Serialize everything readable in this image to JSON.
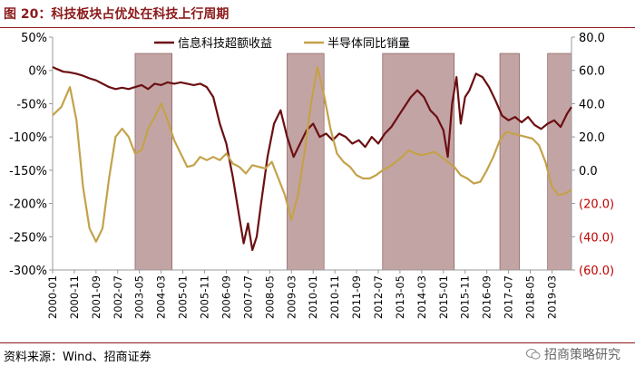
{
  "header": {
    "title": "图 20：科技板块占优处在科技上行周期"
  },
  "footer": {
    "source": "资料来源：Wind、招商证券",
    "watermark": "招商策略研究"
  },
  "chart_data": {
    "type": "line",
    "title": "图 20：科技板块占优处在科技上行周期",
    "legend_position": "top",
    "colors": {
      "tech_excess": "#6B0F12",
      "semi_sales": "#C4A24A",
      "shade": "#B89494",
      "right_neg": "#C00000"
    },
    "x_ticks": [
      "2000-01",
      "2000-11",
      "2001-09",
      "2002-07",
      "2003-05",
      "2004-03",
      "2005-01",
      "2005-11",
      "2006-09",
      "2007-07",
      "2008-05",
      "2009-03",
      "2010-01",
      "2010-11",
      "2011-09",
      "2012-07",
      "2013-05",
      "2014-03",
      "2015-01",
      "2015-11",
      "2016-09",
      "2017-07",
      "2018-05",
      "2019-03"
    ],
    "x_range": [
      "2000-01",
      "2019-12"
    ],
    "y_left": {
      "ticks": [
        "50%",
        "0%",
        "-50%",
        "-100%",
        "-150%",
        "-200%",
        "-250%",
        "-300%"
      ],
      "range": [
        -300,
        50
      ],
      "unit": "%"
    },
    "y_right": {
      "ticks": [
        "80.0",
        "60.0",
        "40.0",
        "20.0",
        "0.0",
        "(20.0)",
        "(40.0)",
        "(60.0)"
      ],
      "range": [
        -60,
        80
      ]
    },
    "shaded_periods": [
      [
        "2003-03",
        "2004-08"
      ],
      [
        "2009-01",
        "2010-06"
      ],
      [
        "2012-09",
        "2015-06"
      ],
      [
        "2017-03",
        "2017-12"
      ],
      [
        "2019-01",
        "2019-12"
      ]
    ],
    "series": [
      {
        "name": "信息科技超额收益",
        "axis": "left",
        "points": [
          [
            "2000-01",
            5
          ],
          [
            "2000-03",
            2
          ],
          [
            "2000-06",
            -2
          ],
          [
            "2000-09",
            -3
          ],
          [
            "2000-12",
            -5
          ],
          [
            "2001-03",
            -8
          ],
          [
            "2001-06",
            -12
          ],
          [
            "2001-09",
            -15
          ],
          [
            "2001-12",
            -20
          ],
          [
            "2002-03",
            -25
          ],
          [
            "2002-06",
            -28
          ],
          [
            "2002-09",
            -26
          ],
          [
            "2002-12",
            -28
          ],
          [
            "2003-03",
            -25
          ],
          [
            "2003-06",
            -22
          ],
          [
            "2003-09",
            -28
          ],
          [
            "2003-12",
            -20
          ],
          [
            "2004-03",
            -22
          ],
          [
            "2004-06",
            -18
          ],
          [
            "2004-09",
            -20
          ],
          [
            "2004-12",
            -18
          ],
          [
            "2005-03",
            -20
          ],
          [
            "2005-06",
            -22
          ],
          [
            "2005-09",
            -20
          ],
          [
            "2005-12",
            -25
          ],
          [
            "2006-03",
            -40
          ],
          [
            "2006-06",
            -80
          ],
          [
            "2006-09",
            -110
          ],
          [
            "2006-12",
            -160
          ],
          [
            "2007-03",
            -220
          ],
          [
            "2007-05",
            -260
          ],
          [
            "2007-07",
            -230
          ],
          [
            "2007-09",
            -270
          ],
          [
            "2007-11",
            -250
          ],
          [
            "2008-01",
            -200
          ],
          [
            "2008-04",
            -130
          ],
          [
            "2008-07",
            -80
          ],
          [
            "2008-10",
            -60
          ],
          [
            "2009-01",
            -100
          ],
          [
            "2009-04",
            -130
          ],
          [
            "2009-07",
            -110
          ],
          [
            "2009-10",
            -90
          ],
          [
            "2010-01",
            -80
          ],
          [
            "2010-04",
            -100
          ],
          [
            "2010-07",
            -95
          ],
          [
            "2010-10",
            -105
          ],
          [
            "2011-01",
            -95
          ],
          [
            "2011-04",
            -100
          ],
          [
            "2011-07",
            -110
          ],
          [
            "2011-10",
            -105
          ],
          [
            "2012-01",
            -115
          ],
          [
            "2012-04",
            -100
          ],
          [
            "2012-07",
            -110
          ],
          [
            "2012-10",
            -95
          ],
          [
            "2013-01",
            -85
          ],
          [
            "2013-04",
            -70
          ],
          [
            "2013-07",
            -55
          ],
          [
            "2013-10",
            -40
          ],
          [
            "2014-01",
            -30
          ],
          [
            "2014-04",
            -40
          ],
          [
            "2014-07",
            -60
          ],
          [
            "2014-10",
            -70
          ],
          [
            "2015-01",
            -90
          ],
          [
            "2015-03",
            -130
          ],
          [
            "2015-05",
            -50
          ],
          [
            "2015-07",
            -10
          ],
          [
            "2015-09",
            -80
          ],
          [
            "2015-11",
            -40
          ],
          [
            "2016-01",
            -30
          ],
          [
            "2016-04",
            -5
          ],
          [
            "2016-07",
            -10
          ],
          [
            "2016-10",
            -25
          ],
          [
            "2017-01",
            -45
          ],
          [
            "2017-04",
            -68
          ],
          [
            "2017-07",
            -75
          ],
          [
            "2017-10",
            -70
          ],
          [
            "2018-01",
            -78
          ],
          [
            "2018-04",
            -70
          ],
          [
            "2018-07",
            -82
          ],
          [
            "2018-10",
            -88
          ],
          [
            "2019-01",
            -80
          ],
          [
            "2019-04",
            -75
          ],
          [
            "2019-07",
            -85
          ],
          [
            "2019-10",
            -65
          ],
          [
            "2019-12",
            -55
          ]
        ]
      },
      {
        "name": "半导体同比销量",
        "axis": "right",
        "points": [
          [
            "2000-01",
            33
          ],
          [
            "2000-05",
            38
          ],
          [
            "2000-09",
            50
          ],
          [
            "2000-12",
            30
          ],
          [
            "2001-03",
            -10
          ],
          [
            "2001-06",
            -35
          ],
          [
            "2001-09",
            -43
          ],
          [
            "2001-12",
            -35
          ],
          [
            "2002-03",
            -5
          ],
          [
            "2002-06",
            20
          ],
          [
            "2002-09",
            25
          ],
          [
            "2002-12",
            20
          ],
          [
            "2003-03",
            10
          ],
          [
            "2003-06",
            12
          ],
          [
            "2003-09",
            25
          ],
          [
            "2003-12",
            32
          ],
          [
            "2004-03",
            40
          ],
          [
            "2004-06",
            30
          ],
          [
            "2004-09",
            18
          ],
          [
            "2004-12",
            10
          ],
          [
            "2005-03",
            2
          ],
          [
            "2005-06",
            3
          ],
          [
            "2005-09",
            8
          ],
          [
            "2005-12",
            6
          ],
          [
            "2006-03",
            8
          ],
          [
            "2006-06",
            6
          ],
          [
            "2006-09",
            10
          ],
          [
            "2006-12",
            4
          ],
          [
            "2007-03",
            2
          ],
          [
            "2007-06",
            -2
          ],
          [
            "2007-09",
            3
          ],
          [
            "2007-12",
            2
          ],
          [
            "2008-03",
            1
          ],
          [
            "2008-06",
            5
          ],
          [
            "2008-09",
            -5
          ],
          [
            "2008-12",
            -15
          ],
          [
            "2009-03",
            -30
          ],
          [
            "2009-06",
            -15
          ],
          [
            "2009-09",
            10
          ],
          [
            "2009-12",
            40
          ],
          [
            "2010-03",
            62
          ],
          [
            "2010-06",
            45
          ],
          [
            "2010-09",
            25
          ],
          [
            "2010-12",
            10
          ],
          [
            "2011-03",
            5
          ],
          [
            "2011-06",
            2
          ],
          [
            "2011-09",
            -3
          ],
          [
            "2011-12",
            -5
          ],
          [
            "2012-03",
            -5
          ],
          [
            "2012-06",
            -3
          ],
          [
            "2012-09",
            0
          ],
          [
            "2012-12",
            2
          ],
          [
            "2013-03",
            5
          ],
          [
            "2013-06",
            8
          ],
          [
            "2013-09",
            12
          ],
          [
            "2013-12",
            10
          ],
          [
            "2014-03",
            9
          ],
          [
            "2014-06",
            10
          ],
          [
            "2014-09",
            11
          ],
          [
            "2014-12",
            8
          ],
          [
            "2015-03",
            5
          ],
          [
            "2015-06",
            2
          ],
          [
            "2015-09",
            -3
          ],
          [
            "2015-12",
            -5
          ],
          [
            "2016-03",
            -8
          ],
          [
            "2016-06",
            -7
          ],
          [
            "2016-09",
            0
          ],
          [
            "2016-12",
            8
          ],
          [
            "2017-03",
            18
          ],
          [
            "2017-06",
            23
          ],
          [
            "2017-09",
            22
          ],
          [
            "2017-12",
            21
          ],
          [
            "2018-03",
            20
          ],
          [
            "2018-06",
            19
          ],
          [
            "2018-09",
            15
          ],
          [
            "2018-12",
            5
          ],
          [
            "2019-03",
            -10
          ],
          [
            "2019-06",
            -15
          ],
          [
            "2019-09",
            -14
          ],
          [
            "2019-12",
            -12
          ]
        ]
      }
    ]
  }
}
